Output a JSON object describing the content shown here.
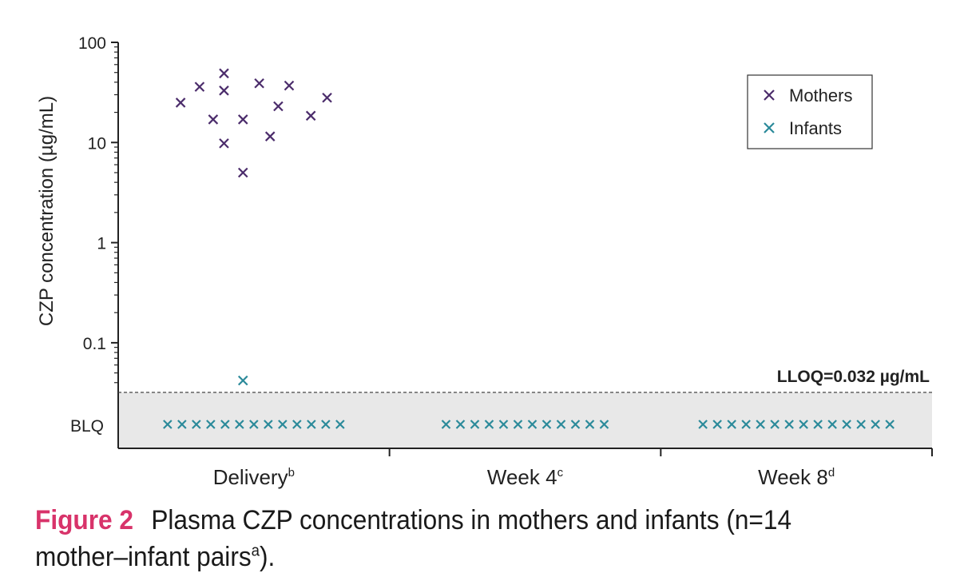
{
  "chart_data": {
    "type": "scatter",
    "ylabel": "CZP concentration (µg/mL)",
    "yscale": "log",
    "ylim": [
      0.01,
      100
    ],
    "yticks": [
      {
        "value": 100,
        "label": "100"
      },
      {
        "value": 10,
        "label": "10"
      },
      {
        "value": 1,
        "label": "1"
      },
      {
        "value": 0.1,
        "label": "0.1"
      }
    ],
    "blq_label": "BLQ",
    "categories": [
      {
        "name": "Delivery",
        "sup": "b"
      },
      {
        "name": "Week 4",
        "sup": "c"
      },
      {
        "name": "Week 8",
        "sup": "d"
      }
    ],
    "reference_line": {
      "value": 0.032,
      "label": "LLOQ=0.032 µg/mL"
    },
    "legend": {
      "position": "top-right"
    },
    "series": [
      {
        "name": "Mothers",
        "color": "#4b2c6b",
        "points": [
          {
            "category": "Delivery",
            "offset": -0.27,
            "y": 25
          },
          {
            "category": "Delivery",
            "offset": -0.2,
            "y": 36
          },
          {
            "category": "Delivery",
            "offset": -0.15,
            "y": 17
          },
          {
            "category": "Delivery",
            "offset": -0.11,
            "y": 49
          },
          {
            "category": "Delivery",
            "offset": -0.11,
            "y": 33
          },
          {
            "category": "Delivery",
            "offset": -0.11,
            "y": 9.8
          },
          {
            "category": "Delivery",
            "offset": -0.04,
            "y": 17
          },
          {
            "category": "Delivery",
            "offset": -0.04,
            "y": 5.0
          },
          {
            "category": "Delivery",
            "offset": 0.02,
            "y": 39
          },
          {
            "category": "Delivery",
            "offset": 0.06,
            "y": 11.5
          },
          {
            "category": "Delivery",
            "offset": 0.09,
            "y": 23
          },
          {
            "category": "Delivery",
            "offset": 0.13,
            "y": 37
          },
          {
            "category": "Delivery",
            "offset": 0.21,
            "y": 18.5
          },
          {
            "category": "Delivery",
            "offset": 0.27,
            "y": 28
          }
        ]
      },
      {
        "name": "Infants",
        "color": "#2b8a9a",
        "points": [
          {
            "category": "Delivery",
            "offset": -0.04,
            "y": 0.042
          }
        ],
        "blq_counts": {
          "Delivery": 13,
          "Week 4": 12,
          "Week 8": 14
        }
      }
    ]
  },
  "caption": {
    "label": "Figure 2",
    "text": "Plasma CZP concentrations in mothers and infants (n=14 mother–infant pairs",
    "sup": "a",
    "end": ")."
  }
}
